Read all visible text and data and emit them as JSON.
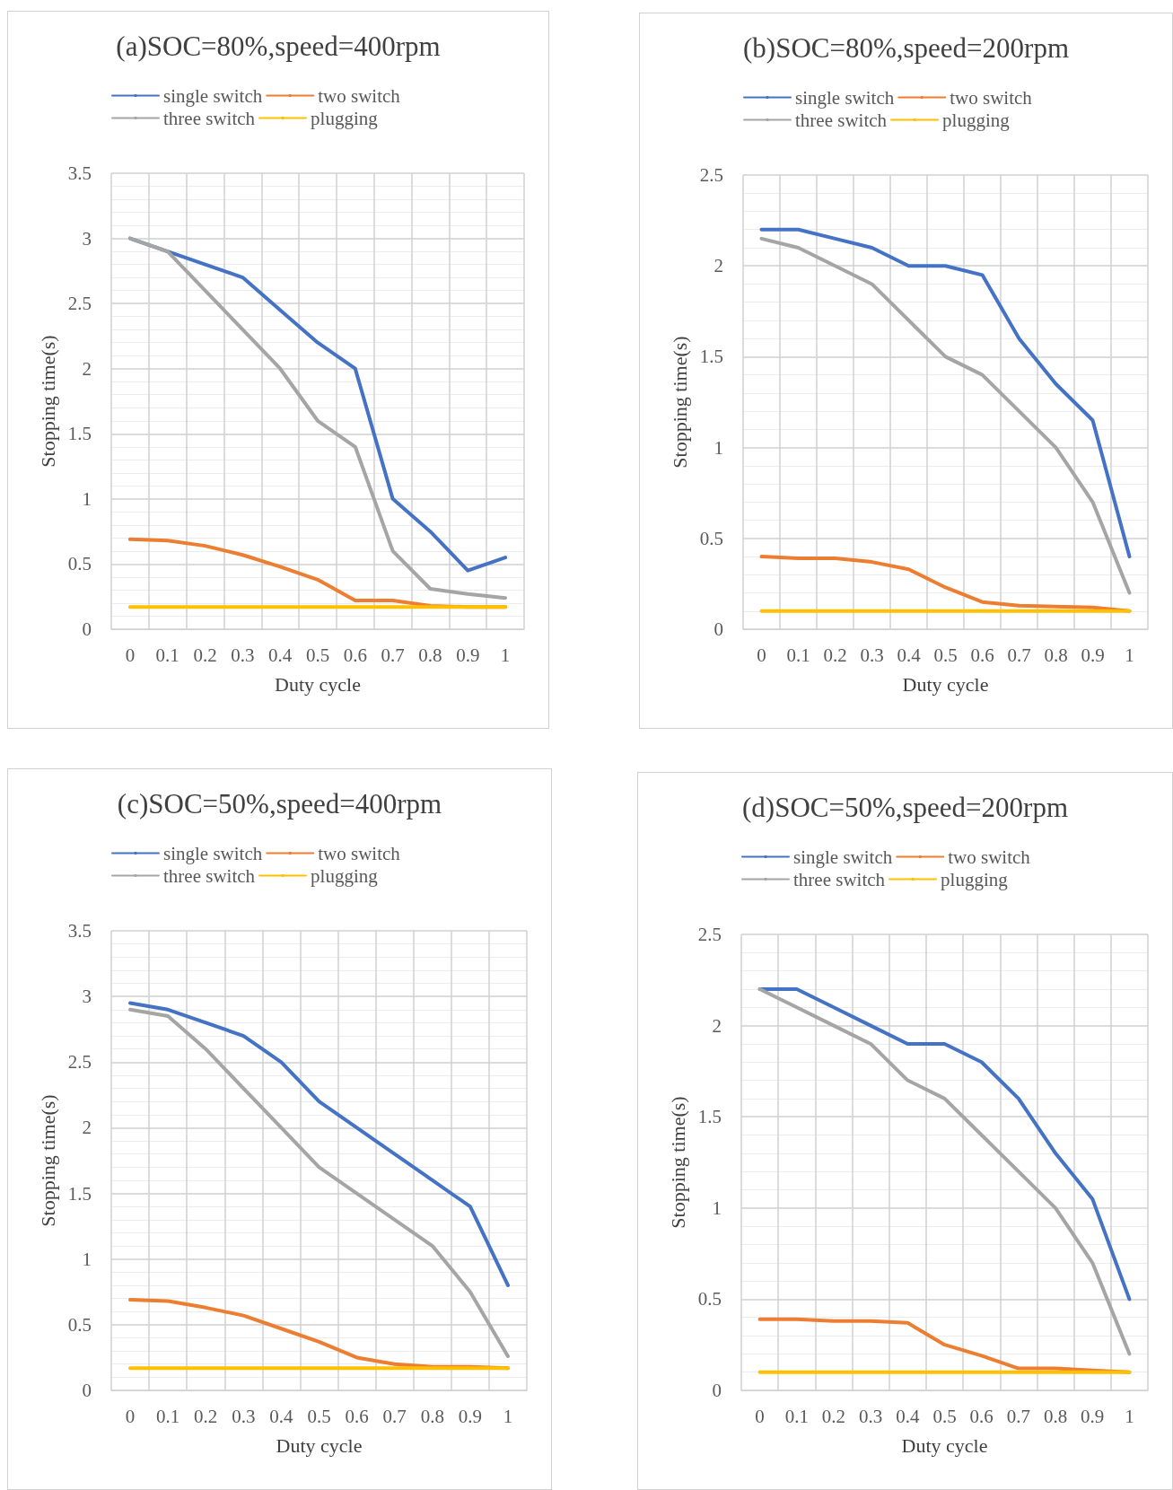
{
  "chart_data": [
    {
      "type": "line",
      "title": "(a)SOC=80%,speed=400rpm",
      "xlabel": "Duty cycle",
      "ylabel": "Stopping time(s)",
      "categories": [
        "0",
        "0.1",
        "0.2",
        "0.3",
        "0.4",
        "0.5",
        "0.6",
        "0.7",
        "0.8",
        "0.9",
        "1"
      ],
      "ylim": [
        0,
        3.5
      ],
      "yticks": [
        0,
        0.5,
        1,
        1.5,
        2,
        2.5,
        3,
        3.5
      ],
      "grid": true,
      "legend": "top",
      "series": [
        {
          "name": "single switch",
          "color": "#4472c4",
          "values": [
            3,
            2.9,
            2.8,
            2.7,
            2.45,
            2.2,
            2.0,
            1.0,
            0.75,
            0.45,
            0.55
          ]
        },
        {
          "name": "two switch",
          "color": "#ed7d31",
          "values": [
            0.69,
            0.68,
            0.64,
            0.57,
            0.48,
            0.38,
            0.22,
            0.22,
            0.18,
            0.17,
            0.17
          ]
        },
        {
          "name": "three switch",
          "color": "#a5a5a5",
          "values": [
            3,
            2.9,
            2.6,
            2.3,
            2.0,
            1.6,
            1.4,
            0.6,
            0.31,
            0.27,
            0.24
          ]
        },
        {
          "name": "plugging",
          "color": "#ffc000",
          "values": [
            0.17,
            0.17,
            0.17,
            0.17,
            0.17,
            0.17,
            0.17,
            0.17,
            0.17,
            0.17,
            0.17
          ]
        }
      ]
    },
    {
      "type": "line",
      "title": "(b)SOC=80%,speed=200rpm",
      "xlabel": "Duty cycle",
      "ylabel": "Stopping time(s)",
      "categories": [
        "0",
        "0.1",
        "0.2",
        "0.3",
        "0.4",
        "0.5",
        "0.6",
        "0.7",
        "0.8",
        "0.9",
        "1"
      ],
      "ylim": [
        0,
        2.5
      ],
      "yticks": [
        0,
        0.5,
        1,
        1.5,
        2,
        2.5
      ],
      "grid": true,
      "legend": "top",
      "series": [
        {
          "name": "single switch",
          "color": "#4472c4",
          "values": [
            2.2,
            2.2,
            2.15,
            2.1,
            2.0,
            2.0,
            1.95,
            1.6,
            1.35,
            1.15,
            0.4
          ]
        },
        {
          "name": "two switch",
          "color": "#ed7d31",
          "values": [
            0.4,
            0.39,
            0.39,
            0.37,
            0.33,
            0.23,
            0.15,
            0.13,
            0.125,
            0.12,
            0.1
          ]
        },
        {
          "name": "three switch",
          "color": "#a5a5a5",
          "values": [
            2.15,
            2.1,
            2.0,
            1.9,
            1.7,
            1.5,
            1.4,
            1.2,
            1.0,
            0.7,
            0.2
          ]
        },
        {
          "name": "plugging",
          "color": "#ffc000",
          "values": [
            0.1,
            0.1,
            0.1,
            0.1,
            0.1,
            0.1,
            0.1,
            0.1,
            0.1,
            0.1,
            0.1
          ]
        }
      ]
    },
    {
      "type": "line",
      "title": "(c)SOC=50%,speed=400rpm",
      "xlabel": "Duty cycle",
      "ylabel": "Stopping time(s)",
      "categories": [
        "0",
        "0.1",
        "0.2",
        "0.3",
        "0.4",
        "0.5",
        "0.6",
        "0.7",
        "0.8",
        "0.9",
        "1"
      ],
      "ylim": [
        0,
        3.5
      ],
      "yticks": [
        0,
        0.5,
        1,
        1.5,
        2,
        2.5,
        3,
        3.5
      ],
      "grid": true,
      "legend": "top",
      "series": [
        {
          "name": "single switch",
          "color": "#4472c4",
          "values": [
            2.95,
            2.9,
            2.8,
            2.7,
            2.5,
            2.2,
            2.0,
            1.8,
            1.6,
            1.4,
            0.8
          ]
        },
        {
          "name": "two switch",
          "color": "#ed7d31",
          "values": [
            0.69,
            0.68,
            0.63,
            0.57,
            0.47,
            0.37,
            0.25,
            0.2,
            0.18,
            0.18,
            0.17
          ]
        },
        {
          "name": "three switch",
          "color": "#a5a5a5",
          "values": [
            2.9,
            2.85,
            2.6,
            2.3,
            2.0,
            1.7,
            1.5,
            1.3,
            1.1,
            0.75,
            0.26
          ]
        },
        {
          "name": "plugging",
          "color": "#ffc000",
          "values": [
            0.17,
            0.17,
            0.17,
            0.17,
            0.17,
            0.17,
            0.17,
            0.17,
            0.17,
            0.17,
            0.17
          ]
        }
      ]
    },
    {
      "type": "line",
      "title": "(d)SOC=50%,speed=200rpm",
      "xlabel": "Duty cycle",
      "ylabel": "Stopping time(s)",
      "categories": [
        "0",
        "0.1",
        "0.2",
        "0.3",
        "0.4",
        "0.5",
        "0.6",
        "0.7",
        "0.8",
        "0.9",
        "1"
      ],
      "ylim": [
        0,
        2.5
      ],
      "yticks": [
        0,
        0.5,
        1,
        1.5,
        2,
        2.5
      ],
      "grid": true,
      "legend": "top",
      "series": [
        {
          "name": "single switch",
          "color": "#4472c4",
          "values": [
            2.2,
            2.2,
            2.1,
            2.0,
            1.9,
            1.9,
            1.8,
            1.6,
            1.3,
            1.05,
            0.5
          ]
        },
        {
          "name": "two switch",
          "color": "#ed7d31",
          "values": [
            0.39,
            0.39,
            0.38,
            0.38,
            0.37,
            0.25,
            0.19,
            0.12,
            0.12,
            0.11,
            0.1
          ]
        },
        {
          "name": "three switch",
          "color": "#a5a5a5",
          "values": [
            2.2,
            2.1,
            2.0,
            1.9,
            1.7,
            1.6,
            1.4,
            1.2,
            1.0,
            0.7,
            0.2
          ]
        },
        {
          "name": "plugging",
          "color": "#ffc000",
          "values": [
            0.1,
            0.1,
            0.1,
            0.1,
            0.1,
            0.1,
            0.1,
            0.1,
            0.1,
            0.1,
            0.1
          ]
        }
      ]
    }
  ]
}
